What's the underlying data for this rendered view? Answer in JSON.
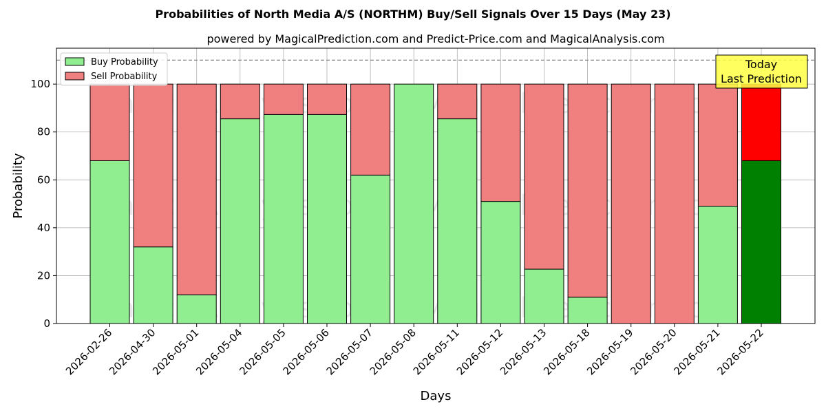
{
  "chart_data": {
    "type": "bar",
    "stacked": true,
    "title": "Probabilities of North Media A/S (NORTHM) Buy/Sell Signals Over 15 Days (May 23)",
    "subtitle": "powered by MagicalPrediction.com and Predict-Price.com and MagicalAnalysis.com",
    "xlabel": "Days",
    "ylabel": "Probability",
    "ylim": [
      0,
      115
    ],
    "yticks": [
      0,
      20,
      40,
      60,
      80,
      100
    ],
    "reference_line": 110,
    "grid": true,
    "legend_position": "top-left",
    "categories": [
      "2026-02-26",
      "2026-04-30",
      "2026-05-01",
      "2026-05-04",
      "2026-05-05",
      "2026-05-06",
      "2026-05-07",
      "2026-05-08",
      "2026-05-11",
      "2026-05-12",
      "2026-05-13",
      "2026-05-18",
      "2026-05-19",
      "2026-05-20",
      "2026-05-21",
      "2026-05-22"
    ],
    "series": [
      {
        "name": "Buy Probability",
        "color": "#90ee90",
        "values": [
          68,
          32,
          12,
          85.5,
          87.3,
          87.3,
          62,
          100,
          85.5,
          51,
          22.7,
          11,
          0,
          0,
          49,
          68
        ]
      },
      {
        "name": "Sell Probability",
        "color": "#f08080",
        "values": [
          32,
          68,
          88,
          14.5,
          12.7,
          12.7,
          38,
          0,
          14.5,
          49,
          77.3,
          89,
          100,
          100,
          51,
          32
        ]
      }
    ],
    "highlight": {
      "index": 15,
      "buy_color": "#008000",
      "sell_color": "#ff0000"
    },
    "annotation": {
      "lines": [
        "Today",
        "Last Prediction"
      ],
      "color": "#ffff44"
    },
    "watermarks": [
      "MagicalAnalysis.com",
      "MagicalPrediction.com"
    ]
  }
}
